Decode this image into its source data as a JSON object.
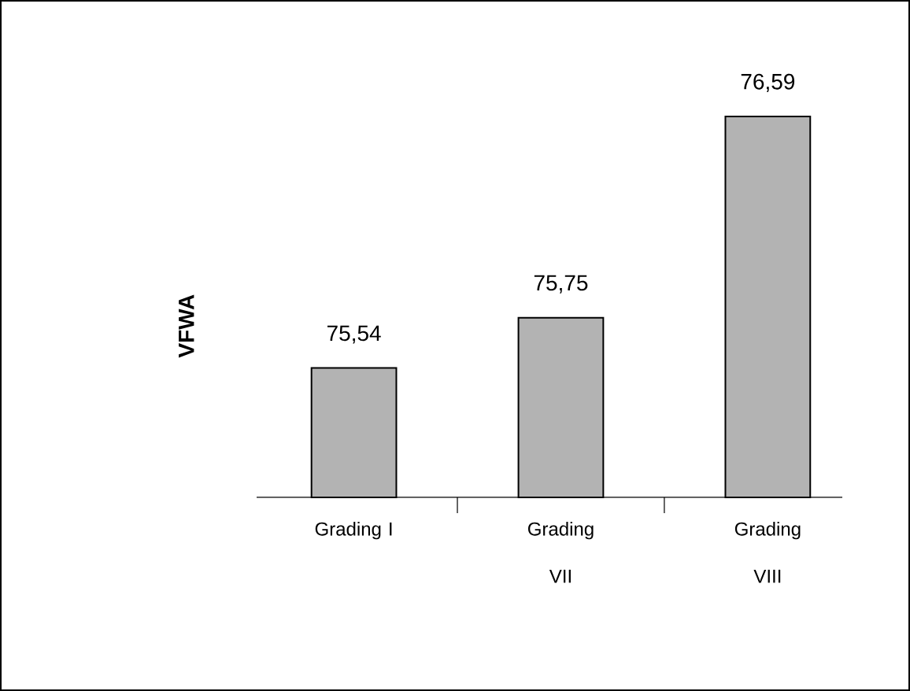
{
  "chart_data": {
    "type": "bar",
    "ylabel": "VFWA",
    "categories": [
      "Grading I",
      "Grading VII",
      "Grading VIII"
    ],
    "values": [
      75.54,
      75.75,
      76.59
    ],
    "value_labels": [
      "75,54",
      "75,75",
      "76,59"
    ],
    "color": "#b3b3b3",
    "ylim": [
      75,
      76.59
    ],
    "tick_labels": "x"
  }
}
